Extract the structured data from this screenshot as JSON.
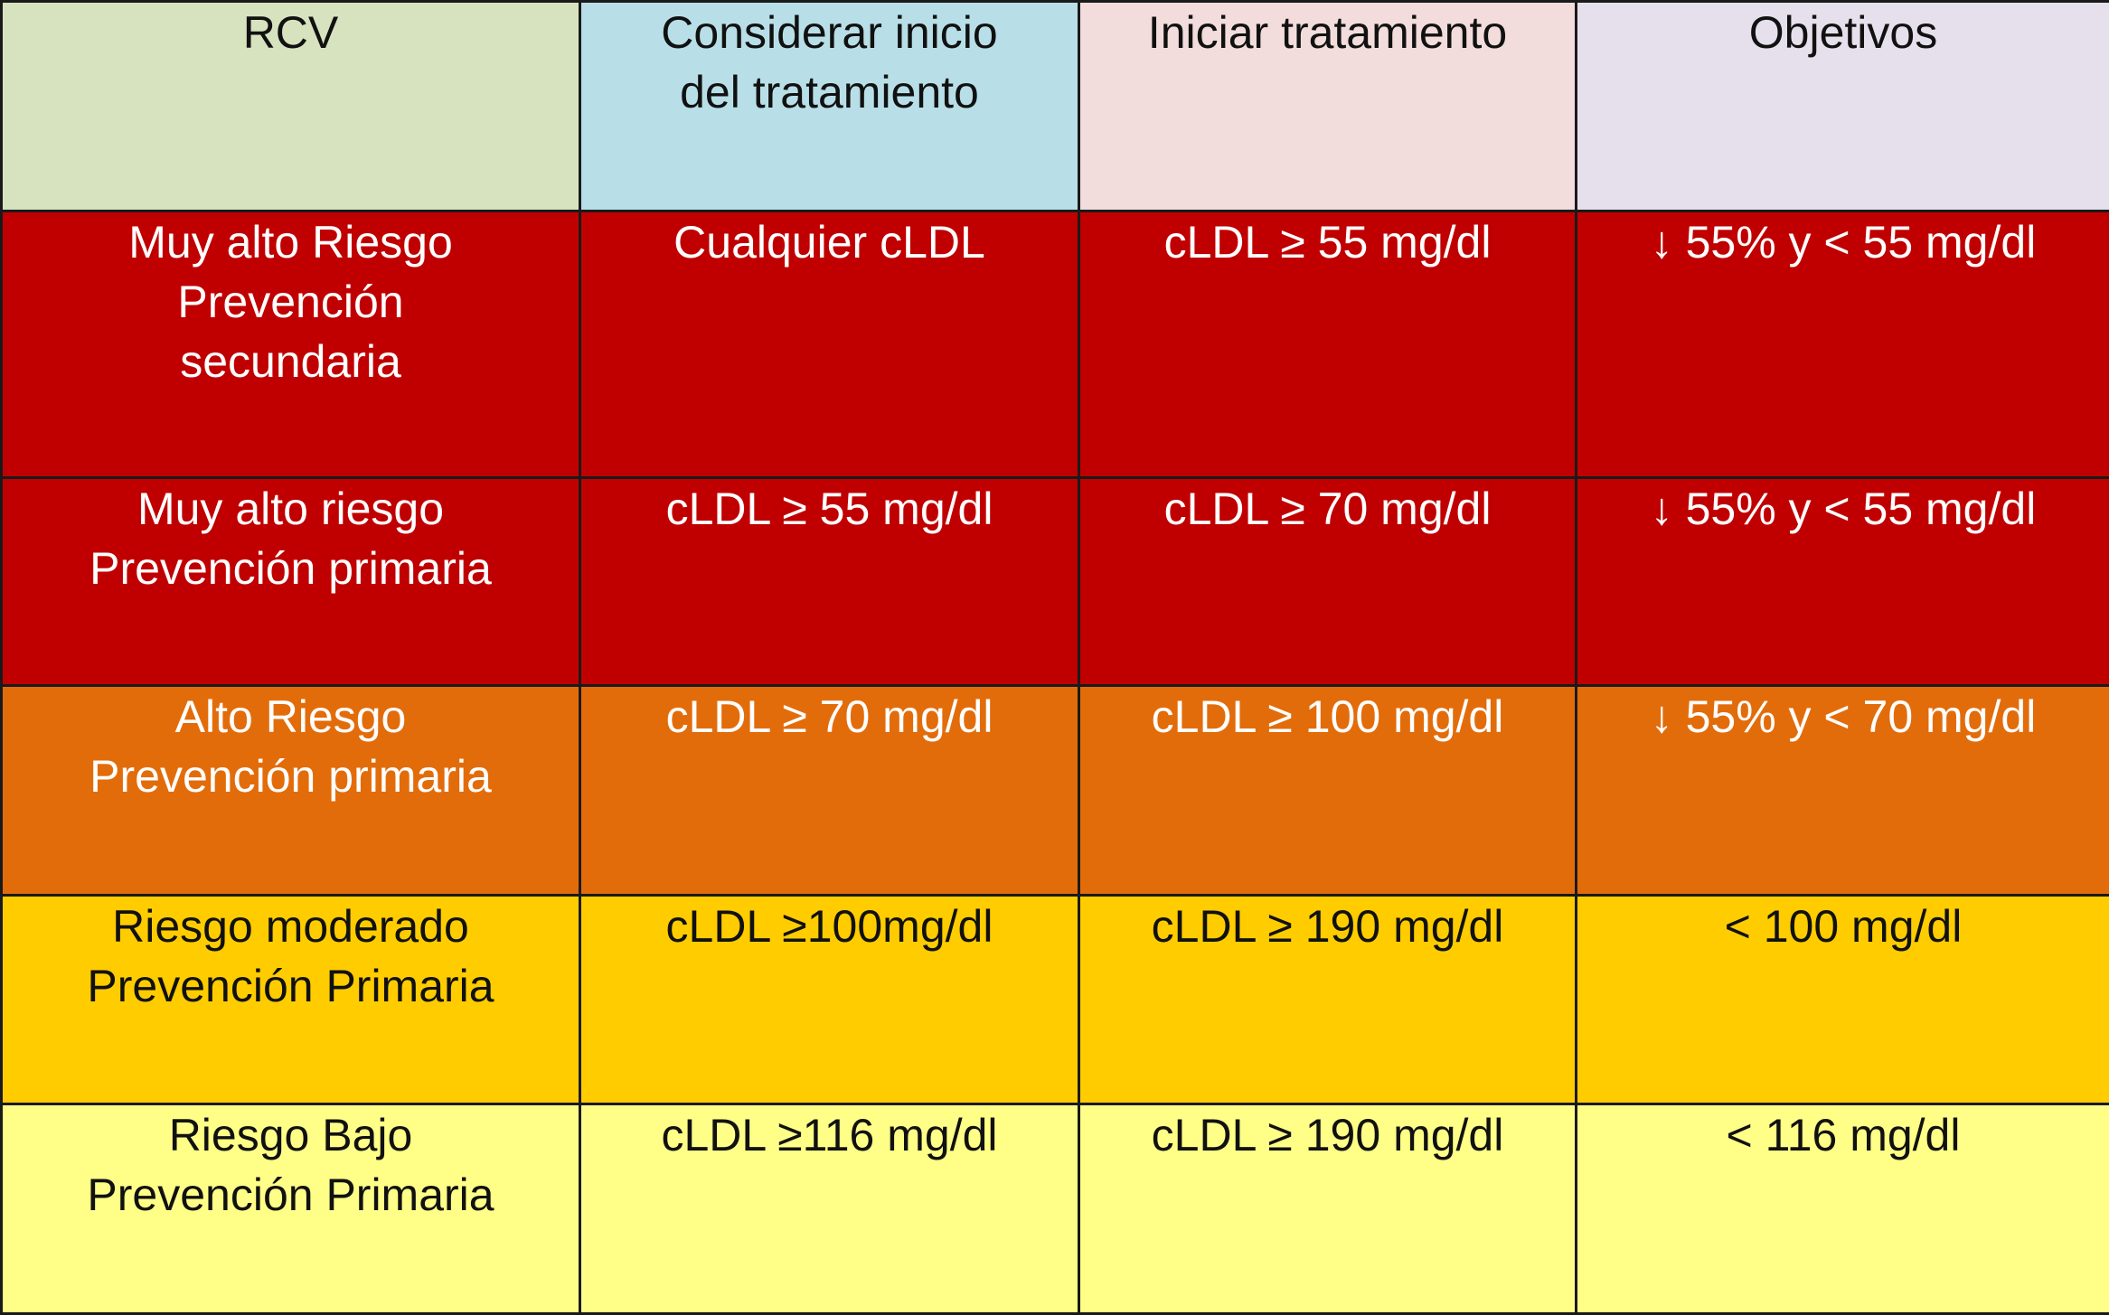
{
  "colors": {
    "header_rcv": "#d7e3bf",
    "header_considerar": "#b8dfe8",
    "header_iniciar": "#f2dcdc",
    "header_objetivos": "#e5e0ec",
    "very_high": "#c00000",
    "high": "#e36c0a",
    "moderate": "#ffcc00",
    "low": "#ffff88",
    "text_light": "#ffffff",
    "text_dark": "#111111"
  },
  "table": {
    "headers": [
      "RCV",
      "Considerar inicio\ndel tratamiento",
      "Iniciar tratamiento",
      "Objetivos"
    ],
    "rows": [
      {
        "cells": [
          "Muy alto Riesgo\nPrevención\nsecundaria",
          "Cualquier cLDL",
          "cLDL ≥ 55 mg/dl",
          "↓ 55% y < 55 mg/dl"
        ]
      },
      {
        "cells": [
          "Muy alto riesgo\nPrevención primaria",
          "cLDL ≥ 55 mg/dl",
          "cLDL ≥ 70 mg/dl",
          "↓ 55% y < 55 mg/dl"
        ]
      },
      {
        "cells": [
          "Alto Riesgo\nPrevención primaria",
          "cLDL ≥ 70 mg/dl",
          "cLDL ≥ 100 mg/dl",
          "↓ 55% y < 70 mg/dl"
        ]
      },
      {
        "cells": [
          "Riesgo moderado\nPrevención Primaria",
          "cLDL ≥100mg/dl",
          "cLDL ≥ 190 mg/dl",
          "< 100 mg/dl"
        ]
      },
      {
        "cells": [
          "Riesgo Bajo\nPrevención Primaria",
          "cLDL ≥116 mg/dl",
          "cLDL ≥ 190 mg/dl",
          "< 116 mg/dl"
        ]
      }
    ]
  }
}
